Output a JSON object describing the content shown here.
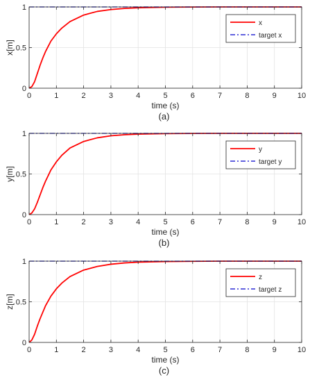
{
  "chart_data": [
    {
      "type": "line",
      "panel_label": "(a)",
      "xlabel": "time (s)",
      "ylabel": "x[m]",
      "xlim": [
        0,
        10
      ],
      "ylim": [
        0,
        1
      ],
      "xticks": [
        0,
        1,
        2,
        3,
        4,
        5,
        6,
        7,
        8,
        9,
        10
      ],
      "yticks": [
        0,
        0.5,
        1
      ],
      "grid": true,
      "legend_position": "top-right",
      "series": [
        {
          "name": "x",
          "color": "#ff0000",
          "style": "solid",
          "x": [
            0,
            0.1,
            0.2,
            0.3,
            0.4,
            0.5,
            0.6,
            0.8,
            1,
            1.2,
            1.5,
            2,
            2.5,
            3,
            3.5,
            4,
            5,
            6,
            7,
            8,
            9,
            10
          ],
          "y": [
            0,
            0.02,
            0.08,
            0.18,
            0.28,
            0.37,
            0.45,
            0.58,
            0.67,
            0.74,
            0.82,
            0.9,
            0.945,
            0.968,
            0.982,
            0.99,
            0.997,
            0.999,
            1,
            1,
            1,
            1
          ]
        },
        {
          "name": "target x",
          "color": "#0000cc",
          "style": "dashdot",
          "x": [
            0,
            10
          ],
          "y": [
            1,
            1
          ]
        }
      ]
    },
    {
      "type": "line",
      "panel_label": "(b)",
      "xlabel": "time (s)",
      "ylabel": "y[m]",
      "xlim": [
        0,
        10
      ],
      "ylim": [
        0,
        1
      ],
      "xticks": [
        0,
        1,
        2,
        3,
        4,
        5,
        6,
        7,
        8,
        9,
        10
      ],
      "yticks": [
        0,
        0.5,
        1
      ],
      "grid": true,
      "legend_position": "top-right",
      "series": [
        {
          "name": "y",
          "color": "#ff0000",
          "style": "solid",
          "x": [
            0,
            0.1,
            0.2,
            0.3,
            0.4,
            0.5,
            0.6,
            0.8,
            1,
            1.2,
            1.5,
            2,
            2.5,
            3,
            3.5,
            4,
            5,
            6,
            7,
            8,
            9,
            10
          ],
          "y": [
            0,
            0.02,
            0.07,
            0.15,
            0.24,
            0.33,
            0.41,
            0.55,
            0.65,
            0.73,
            0.82,
            0.9,
            0.945,
            0.97,
            0.983,
            0.991,
            0.997,
            0.999,
            1,
            1,
            1,
            1
          ]
        },
        {
          "name": "target y",
          "color": "#0000cc",
          "style": "dashdot",
          "x": [
            0,
            10
          ],
          "y": [
            1,
            1
          ]
        }
      ]
    },
    {
      "type": "line",
      "panel_label": "(c)",
      "xlabel": "time (s)",
      "ylabel": "z[m]",
      "xlim": [
        0,
        10
      ],
      "ylim": [
        0,
        1
      ],
      "xticks": [
        0,
        1,
        2,
        3,
        4,
        5,
        6,
        7,
        8,
        9,
        10
      ],
      "yticks": [
        0,
        0.5,
        1
      ],
      "grid": true,
      "legend_position": "top-right",
      "series": [
        {
          "name": "z",
          "color": "#ff0000",
          "style": "solid",
          "x": [
            0,
            0.1,
            0.2,
            0.3,
            0.4,
            0.5,
            0.6,
            0.8,
            1,
            1.2,
            1.5,
            2,
            2.5,
            3,
            3.5,
            4,
            5,
            6,
            7,
            8,
            9,
            10
          ],
          "y": [
            0,
            0.03,
            0.1,
            0.2,
            0.29,
            0.37,
            0.45,
            0.57,
            0.66,
            0.73,
            0.81,
            0.89,
            0.935,
            0.962,
            0.978,
            0.987,
            0.995,
            0.998,
            1,
            1,
            1,
            1
          ]
        },
        {
          "name": "target z",
          "color": "#0000cc",
          "style": "dashdot",
          "x": [
            0,
            10
          ],
          "y": [
            1,
            1
          ]
        }
      ]
    }
  ]
}
